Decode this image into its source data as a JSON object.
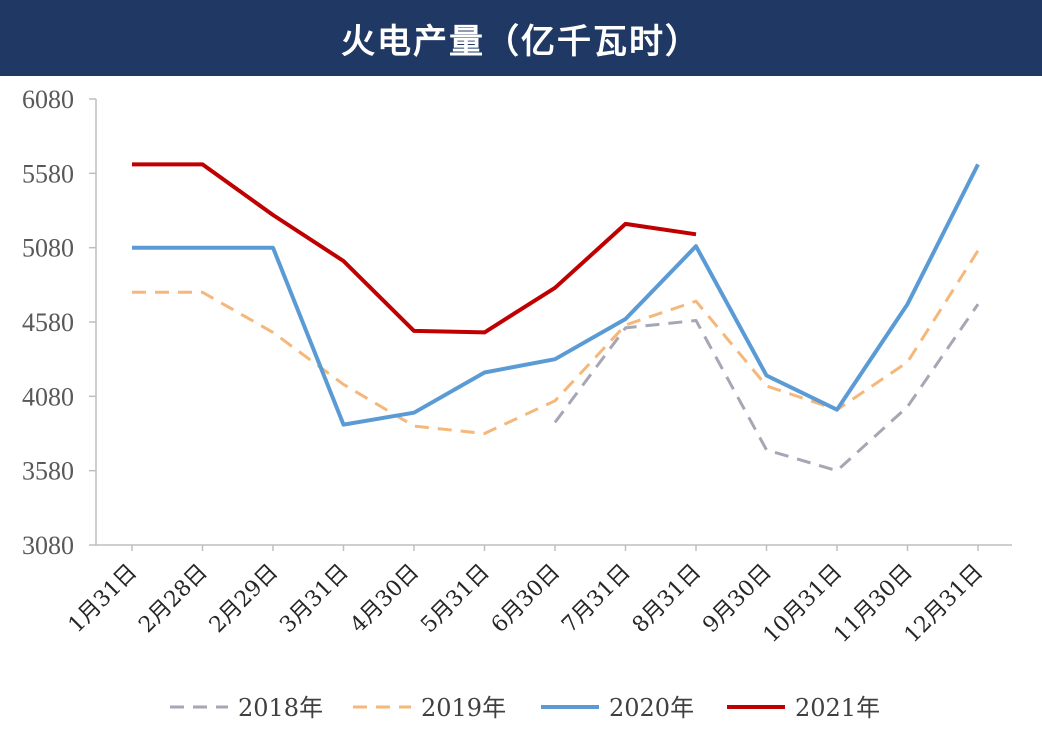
{
  "title": "火电产量（亿千瓦时）",
  "chart_data": {
    "type": "line",
    "title": "火电产量（亿千瓦时）",
    "xlabel": "",
    "ylabel": "",
    "ylim": [
      3080,
      6080
    ],
    "yticks": [
      3080,
      3580,
      4080,
      4580,
      5080,
      5580,
      6080
    ],
    "categories": [
      "1月31日",
      "2月28日",
      "2月29日",
      "3月31日",
      "4月30日",
      "5月31日",
      "6月30日",
      "7月31日",
      "8月31日",
      "9月30日",
      "10月31日",
      "11月30日",
      "12月31日"
    ],
    "legend_position": "bottom",
    "grid": false,
    "series": [
      {
        "name": "2018年",
        "color": "#a6a6b4",
        "dash": true,
        "values": [
          null,
          null,
          null,
          null,
          null,
          null,
          3905,
          4540,
          4590,
          3720,
          3580,
          4010,
          4700
        ]
      },
      {
        "name": "2019年",
        "color": "#f5b77a",
        "dash": true,
        "values": [
          4780,
          4780,
          4510,
          4160,
          3880,
          3830,
          4050,
          4560,
          4720,
          4150,
          3990,
          4310,
          5060
        ]
      },
      {
        "name": "2020年",
        "color": "#5b9bd5",
        "dash": false,
        "values": [
          5080,
          5080,
          5080,
          3890,
          3970,
          4240,
          4330,
          4600,
          5090,
          4220,
          3990,
          4700,
          5640
        ]
      },
      {
        "name": "2021年",
        "color": "#c00000",
        "dash": false,
        "values": [
          5640,
          5640,
          5300,
          4990,
          4520,
          4510,
          4810,
          5240,
          5170,
          null,
          null,
          null,
          null
        ]
      }
    ]
  }
}
